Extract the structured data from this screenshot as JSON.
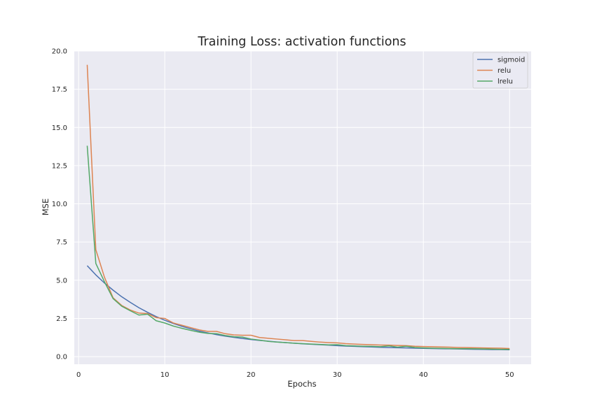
{
  "chart_data": {
    "type": "line",
    "title": "Training Loss: activation functions",
    "xlabel": "Epochs",
    "ylabel": "MSE",
    "xlim": [
      -0.5,
      52.5
    ],
    "ylim": [
      -0.5,
      20.0
    ],
    "xticks": [
      0,
      10,
      20,
      30,
      40,
      50
    ],
    "xtick_labels": [
      "0",
      "10",
      "20",
      "30",
      "40",
      "50"
    ],
    "yticks": [
      0.0,
      2.5,
      5.0,
      7.5,
      10.0,
      12.5,
      15.0,
      17.5,
      20.0
    ],
    "ytick_labels": [
      "0.0",
      "2.5",
      "5.0",
      "7.5",
      "10.0",
      "12.5",
      "15.0",
      "17.5",
      "20.0"
    ],
    "grid": true,
    "legend_position": "top-right",
    "x": [
      1,
      2,
      3,
      4,
      5,
      6,
      7,
      8,
      9,
      10,
      11,
      12,
      13,
      14,
      15,
      16,
      17,
      18,
      19,
      20,
      21,
      22,
      23,
      24,
      25,
      26,
      27,
      28,
      29,
      30,
      31,
      32,
      33,
      34,
      35,
      36,
      37,
      38,
      39,
      40,
      41,
      42,
      43,
      44,
      45,
      46,
      47,
      48,
      49,
      50
    ],
    "series": [
      {
        "name": "sigmoid",
        "color": "#4c72b0",
        "values": [
          5.95,
          5.35,
          4.82,
          4.35,
          3.92,
          3.55,
          3.2,
          2.9,
          2.62,
          2.38,
          2.17,
          1.98,
          1.82,
          1.67,
          1.55,
          1.44,
          1.34,
          1.26,
          1.19,
          1.12,
          1.06,
          1.01,
          0.96,
          0.92,
          0.88,
          0.84,
          0.81,
          0.78,
          0.75,
          0.72,
          0.69,
          0.67,
          0.65,
          0.63,
          0.61,
          0.59,
          0.58,
          0.57,
          0.55,
          0.54,
          0.53,
          0.52,
          0.51,
          0.5,
          0.49,
          0.48,
          0.47,
          0.46,
          0.46,
          0.45
        ]
      },
      {
        "name": "relu",
        "color": "#dd8452",
        "values": [
          19.1,
          7.0,
          5.2,
          3.85,
          3.35,
          3.05,
          2.85,
          2.82,
          2.55,
          2.5,
          2.2,
          2.05,
          1.9,
          1.75,
          1.65,
          1.65,
          1.5,
          1.42,
          1.4,
          1.4,
          1.25,
          1.2,
          1.15,
          1.1,
          1.05,
          1.05,
          1.0,
          0.95,
          0.92,
          0.9,
          0.85,
          0.82,
          0.8,
          0.78,
          0.76,
          0.75,
          0.73,
          0.72,
          0.68,
          0.66,
          0.65,
          0.63,
          0.62,
          0.6,
          0.59,
          0.58,
          0.57,
          0.56,
          0.55,
          0.53
        ]
      },
      {
        "name": "lrelu",
        "color": "#55a868",
        "values": [
          13.8,
          6.1,
          4.9,
          3.8,
          3.3,
          3.0,
          2.72,
          2.78,
          2.35,
          2.2,
          2.0,
          1.85,
          1.72,
          1.6,
          1.52,
          1.5,
          1.38,
          1.3,
          1.28,
          1.15,
          1.08,
          1.0,
          0.95,
          0.92,
          0.88,
          0.85,
          0.82,
          0.8,
          0.77,
          0.78,
          0.72,
          0.7,
          0.68,
          0.67,
          0.65,
          0.7,
          0.62,
          0.68,
          0.6,
          0.57,
          0.55,
          0.54,
          0.53,
          0.52,
          0.52,
          0.51,
          0.5,
          0.49,
          0.48,
          0.47
        ]
      }
    ]
  }
}
